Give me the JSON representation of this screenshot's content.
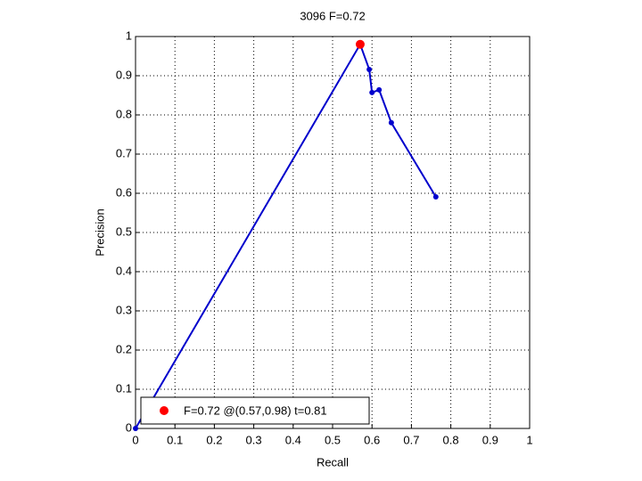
{
  "chart_data": {
    "type": "line",
    "title": "3096 F=0.72",
    "x_label": "Recall",
    "y_label": "Precision",
    "series": [
      {
        "color": "#0000cc",
        "x": [
          0,
          0.57,
          0.593,
          0.6,
          0.618,
          0.649,
          0.762
        ],
        "values": [
          0,
          0.98,
          0.916,
          0.857,
          0.864,
          0.78,
          0.591
        ]
      },
      {
        "name": "F=0.72 @(0.57,0.98) t=0.81",
        "color": "#ff0000",
        "x": [
          0.57
        ],
        "values": [
          0.98
        ]
      }
    ],
    "xlim": [
      0,
      1
    ],
    "ylim": [
      0,
      1
    ],
    "xticks": [
      0,
      0.1,
      0.2,
      0.3,
      0.4,
      0.5,
      0.6,
      0.7,
      0.8,
      0.9,
      1
    ],
    "yticks": [
      0,
      0.1,
      0.2,
      0.3,
      0.4,
      0.5,
      0.6,
      0.7,
      0.8,
      0.9,
      1
    ],
    "grid": true,
    "legend_position": "lower left"
  }
}
